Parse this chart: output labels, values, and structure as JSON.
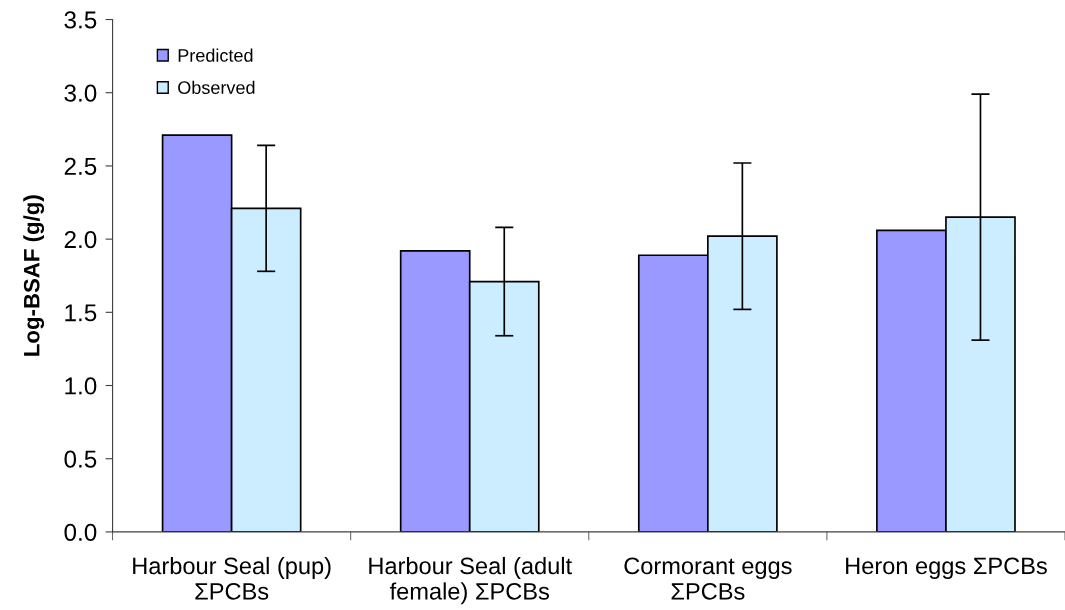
{
  "chart_data": {
    "type": "bar",
    "ylabel": "Log-BSAF (g/g)",
    "categories": [
      "Harbour Seal (pup)\nΣPCBs",
      "Harbour Seal (adult\nfemale) ΣPCBs",
      "Cormorant eggs\nΣPCBs",
      "Heron eggs ΣPCBs"
    ],
    "series": [
      {
        "name": "Predicted",
        "color": "#9999ff",
        "values": [
          2.71,
          1.92,
          1.89,
          2.06
        ]
      },
      {
        "name": "Observed",
        "color": "#ccecff",
        "values": [
          2.21,
          1.71,
          2.02,
          2.15
        ],
        "errors": [
          0.43,
          0.37,
          0.5,
          0.84
        ]
      }
    ],
    "ylim": [
      0.0,
      3.5
    ],
    "yticks": [
      {
        "value": 0,
        "label": "0.0"
      },
      0.5,
      {
        "value": 1,
        "label": "1.0"
      },
      1.5,
      {
        "value": 2,
        "label": "2.0"
      },
      2.5,
      {
        "value": 3,
        "label": "3.0"
      },
      3.5
    ],
    "legend": "top left"
  }
}
